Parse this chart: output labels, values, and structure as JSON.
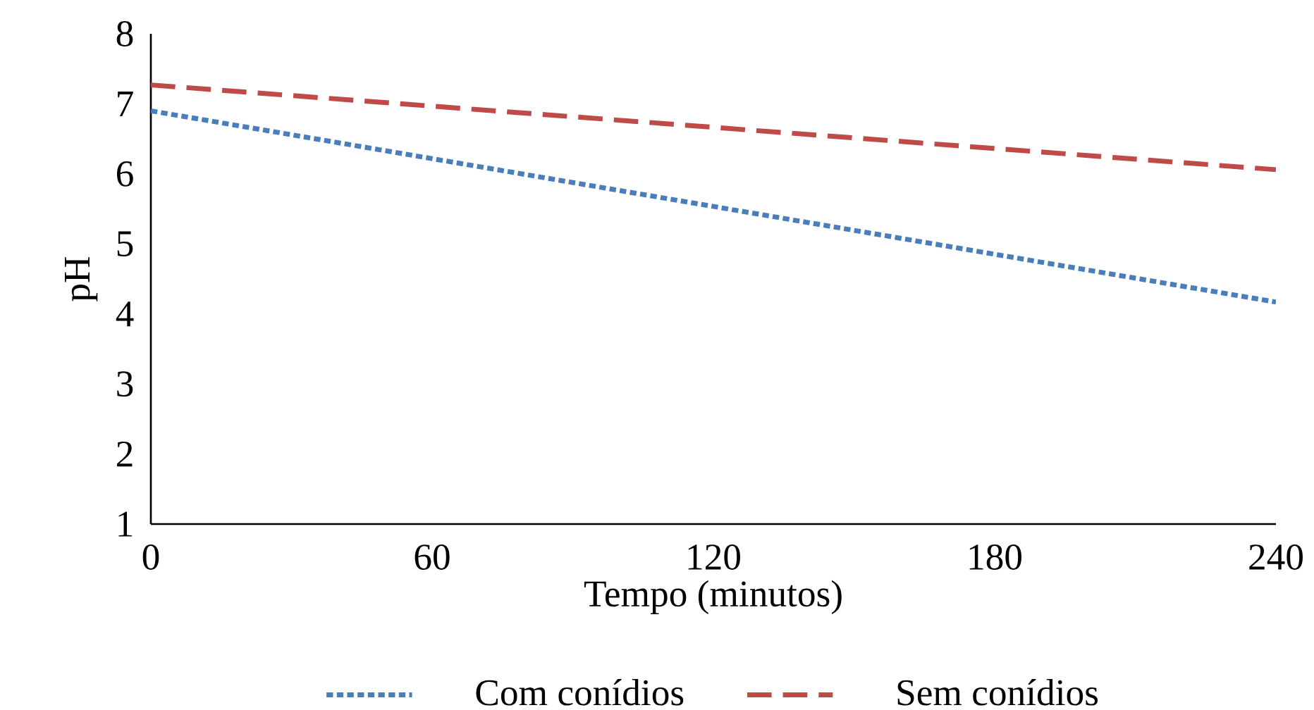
{
  "chart_data": {
    "type": "line",
    "xlabel": "Tempo (minutos)",
    "ylabel": "pH",
    "x": [
      0,
      240
    ],
    "series": [
      {
        "name": "Com conídios",
        "color": "#4a7ebb",
        "values": [
          6.9,
          4.17
        ],
        "line_style": "dotted"
      },
      {
        "name": "Sem conídios",
        "color": "#be4b48",
        "values": [
          7.27,
          6.06
        ],
        "line_style": "dashed"
      }
    ],
    "xlim": [
      0,
      240
    ],
    "xticks": [
      0,
      60,
      120,
      180,
      240
    ],
    "ylim": [
      1,
      8
    ],
    "yticks": [
      1,
      2,
      3,
      4,
      5,
      6,
      7,
      8
    ],
    "grid": false,
    "legend": "bottom",
    "marker": "none"
  }
}
